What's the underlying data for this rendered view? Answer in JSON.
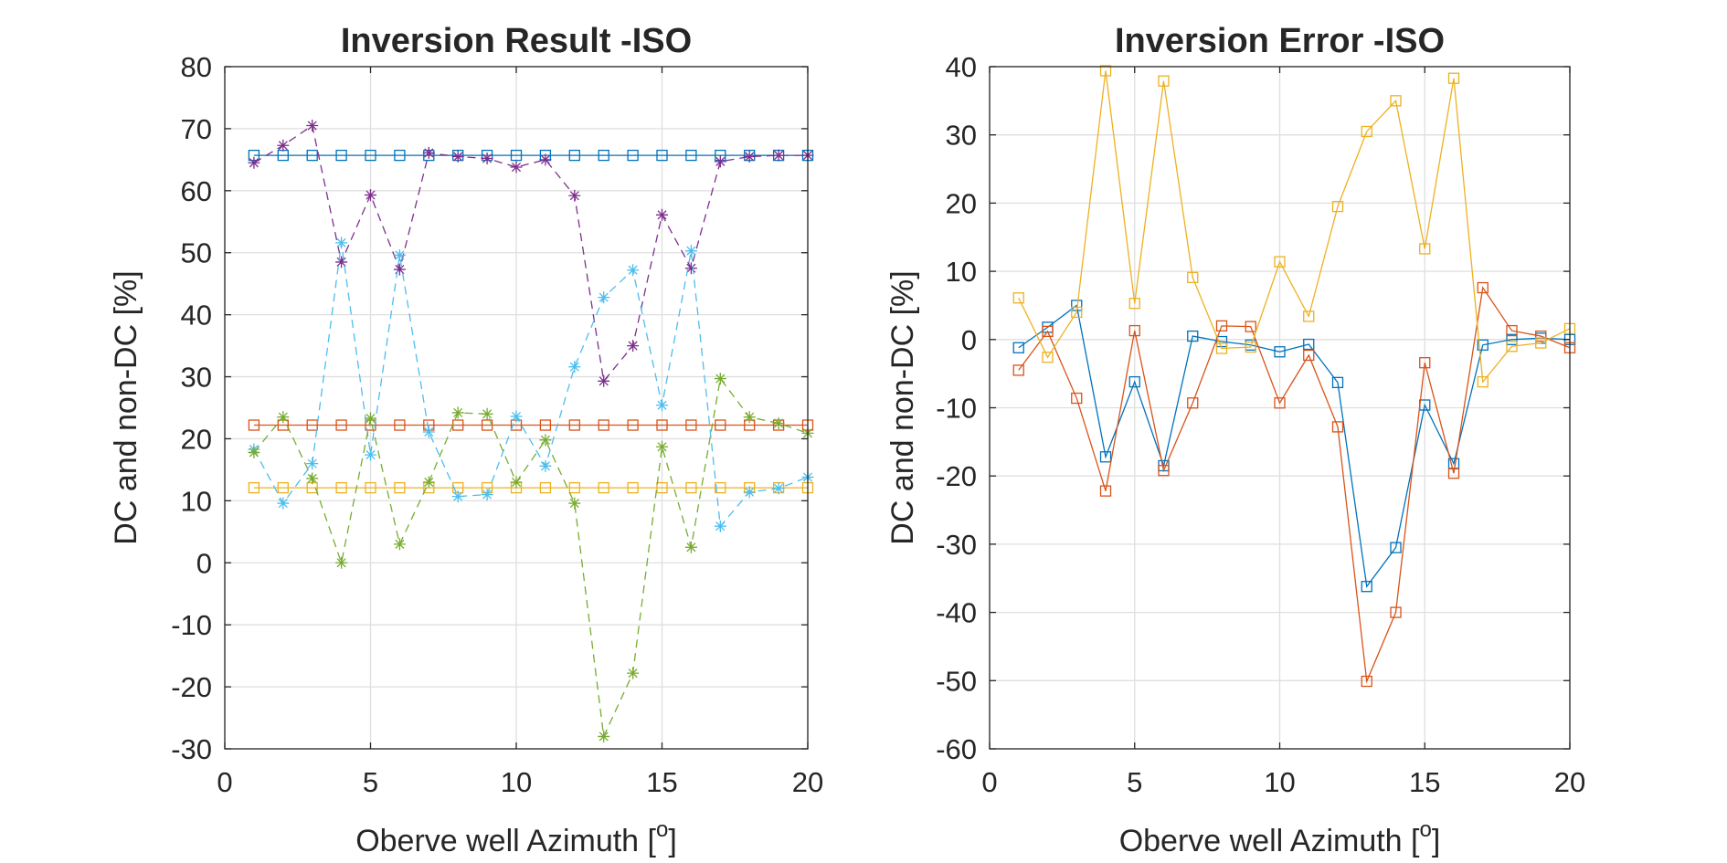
{
  "chart_data": [
    {
      "type": "line",
      "title": "Inversion Result -ISO",
      "xlabel": "Oberve well Azimuth [",
      "xlabel_sup": "o",
      "xlabel_end": "]",
      "ylabel": "DC and non-DC [%]",
      "xlim": [
        0,
        20
      ],
      "ylim": [
        -30,
        80
      ],
      "xticks": [
        0,
        5,
        10,
        15,
        20
      ],
      "yticks": [
        -30,
        -20,
        -10,
        0,
        10,
        20,
        30,
        40,
        50,
        60,
        70,
        80
      ],
      "grid": true,
      "x": [
        1,
        2,
        3,
        4,
        5,
        6,
        7,
        8,
        9,
        10,
        11,
        12,
        13,
        14,
        15,
        16,
        17,
        18,
        19,
        20
      ],
      "series": [
        {
          "color": "#0072BD",
          "marker": "square",
          "dash": false,
          "values": [
            65.7,
            65.7,
            65.7,
            65.7,
            65.7,
            65.7,
            65.7,
            65.7,
            65.7,
            65.7,
            65.7,
            65.7,
            65.7,
            65.7,
            65.7,
            65.7,
            65.7,
            65.7,
            65.7,
            65.7
          ]
        },
        {
          "color": "#D95319",
          "marker": "square",
          "dash": false,
          "values": [
            22.2,
            22.2,
            22.2,
            22.2,
            22.2,
            22.2,
            22.2,
            22.2,
            22.2,
            22.2,
            22.2,
            22.2,
            22.2,
            22.2,
            22.2,
            22.2,
            22.2,
            22.2,
            22.2,
            22.2
          ]
        },
        {
          "color": "#EDB120",
          "marker": "square",
          "dash": false,
          "values": [
            12.1,
            12.1,
            12.1,
            12.1,
            12.1,
            12.1,
            12.1,
            12.1,
            12.1,
            12.1,
            12.1,
            12.1,
            12.1,
            12.1,
            12.1,
            12.1,
            12.1,
            12.1,
            12.1,
            12.1
          ]
        },
        {
          "color": "#7E2F8E",
          "marker": "asterisk",
          "dash": true,
          "values": [
            64.5,
            67.3,
            70.5,
            48.5,
            59.3,
            47.3,
            66.1,
            65.5,
            65.2,
            63.8,
            65.0,
            59.2,
            29.3,
            35.0,
            56.1,
            47.5,
            64.7,
            65.5,
            65.7,
            65.7
          ]
        },
        {
          "color": "#4DBEEE",
          "marker": "asterisk",
          "dash": true,
          "values": [
            18.3,
            9.6,
            16.0,
            51.6,
            17.4,
            49.6,
            21.1,
            10.7,
            11.0,
            23.6,
            15.6,
            31.6,
            42.8,
            47.2,
            25.4,
            50.3,
            5.9,
            11.4,
            12.0,
            13.8
          ]
        },
        {
          "color": "#77AC30",
          "marker": "asterisk",
          "dash": true,
          "values": [
            17.8,
            23.5,
            13.6,
            0.0,
            23.3,
            3.0,
            13.0,
            24.2,
            24.0,
            13.0,
            19.8,
            9.6,
            -28.0,
            -17.8,
            18.7,
            2.5,
            29.7,
            23.5,
            22.5,
            20.9
          ]
        }
      ]
    },
    {
      "type": "line",
      "title": "Inversion Error -ISO",
      "xlabel": "Oberve well Azimuth [",
      "xlabel_sup": "o",
      "xlabel_end": "]",
      "ylabel": "DC and non-DC [%]",
      "xlim": [
        0,
        20
      ],
      "ylim": [
        -60,
        40
      ],
      "xticks": [
        0,
        5,
        10,
        15,
        20
      ],
      "yticks": [
        -60,
        -50,
        -40,
        -30,
        -20,
        -10,
        0,
        10,
        20,
        30,
        40
      ],
      "grid": true,
      "x": [
        1,
        2,
        3,
        4,
        5,
        6,
        7,
        8,
        9,
        10,
        11,
        12,
        13,
        14,
        15,
        16,
        17,
        18,
        19,
        20
      ],
      "series": [
        {
          "color": "#0072BD",
          "marker": "square",
          "dash": false,
          "values": [
            -1.2,
            1.8,
            5.0,
            -17.2,
            -6.2,
            -18.5,
            0.5,
            -0.3,
            -0.8,
            -1.8,
            -0.7,
            -6.3,
            -36.2,
            -30.5,
            -9.6,
            -18.2,
            -0.8,
            0.0,
            0.2,
            0.0
          ]
        },
        {
          "color": "#D95319",
          "marker": "square",
          "dash": false,
          "values": [
            -4.5,
            1.2,
            -8.6,
            -22.2,
            1.3,
            -19.2,
            -9.3,
            2.0,
            1.9,
            -9.3,
            -2.3,
            -12.8,
            -50.1,
            -40.0,
            -3.4,
            -19.6,
            7.6,
            1.3,
            0.5,
            -1.2
          ]
        },
        {
          "color": "#EDB120",
          "marker": "square",
          "dash": false,
          "values": [
            6.1,
            -2.6,
            4.0,
            39.4,
            5.3,
            37.9,
            9.1,
            -1.3,
            -1.1,
            11.4,
            3.4,
            19.5,
            30.5,
            35.0,
            13.3,
            38.3,
            -6.2,
            -1.0,
            -0.5,
            1.6
          ]
        }
      ]
    }
  ]
}
